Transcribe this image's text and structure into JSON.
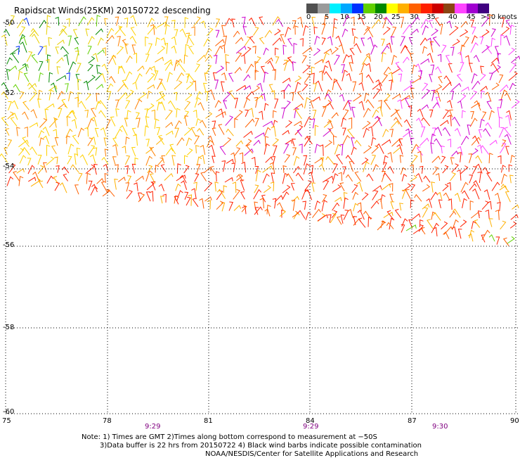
{
  "title": "Rapidscat Winds(25KM) 20150722 descending",
  "legend": {
    "colors": [
      "#505050",
      "#9a9a9a",
      "#00f0ff",
      "#00a8ff",
      "#0030ff",
      "#60d000",
      "#008800",
      "#ffff00",
      "#ffb000",
      "#ff6000",
      "#ff2000",
      "#cc0000",
      "#8b4513",
      "#ff44ff",
      "#a000d0",
      "#400080"
    ],
    "ticks": [
      "0",
      "5",
      "10",
      "15",
      "20",
      "25",
      "30",
      "35",
      "40",
      "45",
      ">50 knots"
    ]
  },
  "lat_labels": [
    "-50",
    "-52",
    "-54",
    "-56",
    "-58",
    "-60"
  ],
  "lon_labels": [
    "75",
    "78",
    "81",
    "84",
    "87",
    "90"
  ],
  "time_labels": [
    "9:29",
    "9:29",
    "9:30"
  ],
  "notes": [
    "Note: 1) Times are GMT 2)Times along bottom correspond to measurement at −50S",
    "3)Data buffer is 22 hrs from 20150722 4) Black wind barbs indicate possible contamination",
    "NOAA/NESDIS/Center for Satellite Applications and Research"
  ]
}
